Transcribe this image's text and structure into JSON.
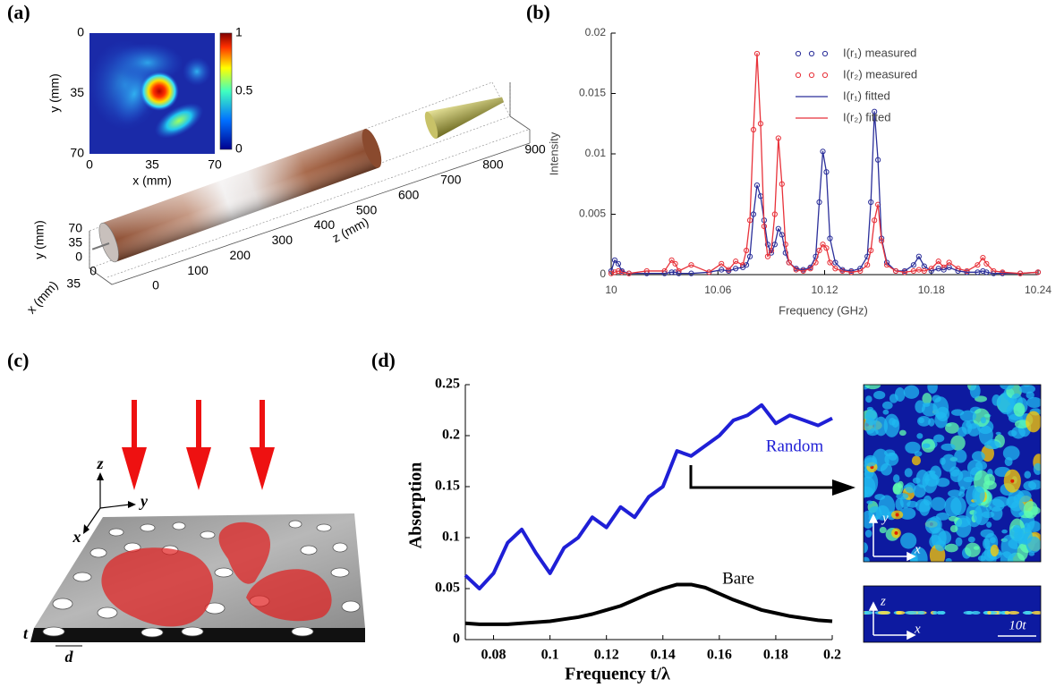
{
  "panel_labels": [
    "(a)",
    "(b)",
    "(c)",
    "(d)"
  ],
  "chart_data": [
    {
      "type": "line",
      "xlabel": "Frequency (GHz)",
      "ylabel": "Intensity",
      "legend": "upper right",
      "xlim": [
        10,
        10.24
      ],
      "xticks": [
        10,
        10.06,
        10.12,
        10.18,
        10.24
      ],
      "ylim": [
        0,
        0.02
      ],
      "yticks": [
        0,
        0.005,
        0.01,
        0.015,
        0.02
      ],
      "x": [
        10,
        10.002,
        10.004,
        10.006,
        10.01,
        10.02,
        10.03,
        10.034,
        10.036,
        10.038,
        10.045,
        10.055,
        10.062,
        10.066,
        10.07,
        10.074,
        10.076,
        10.078,
        10.08,
        10.082,
        10.084,
        10.086,
        10.088,
        10.09,
        10.092,
        10.094,
        10.096,
        10.098,
        10.1,
        10.104,
        10.108,
        10.112,
        10.115,
        10.117,
        10.119,
        10.121,
        10.123,
        10.126,
        10.13,
        10.135,
        10.14,
        10.144,
        10.146,
        10.148,
        10.15,
        10.152,
        10.155,
        10.16,
        10.165,
        10.17,
        10.173,
        10.176,
        10.18,
        10.184,
        10.187,
        10.19,
        10.195,
        10.2,
        10.206,
        10.209,
        10.211,
        10.215,
        10.22,
        10.23,
        10.24
      ],
      "series": [
        {
          "name": "I(r₁) measured",
          "style": "markers",
          "color": "#2b2f9a",
          "values": [
            0.0003,
            0.0012,
            0.0009,
            0.0003,
            0.0001,
            0.0001,
            0.0001,
            0.0002,
            0.0002,
            0.0001,
            0.0001,
            0.0002,
            0.0004,
            0.0003,
            0.0005,
            0.0006,
            0.0008,
            0.0015,
            0.005,
            0.0074,
            0.0065,
            0.0045,
            0.0025,
            0.0018,
            0.0025,
            0.0038,
            0.0033,
            0.0018,
            0.001,
            0.0005,
            0.0004,
            0.0006,
            0.0015,
            0.006,
            0.0102,
            0.0085,
            0.003,
            0.001,
            0.0004,
            0.0003,
            0.0005,
            0.0015,
            0.006,
            0.0135,
            0.0095,
            0.003,
            0.001,
            0.0003,
            0.0003,
            0.0008,
            0.0015,
            0.0007,
            0.0003,
            0.0005,
            0.0004,
            0.0006,
            0.0003,
            0.0002,
            0.0002,
            0.0003,
            0.0002,
            0.0001,
            0.0001,
            0.0001,
            0.0002
          ]
        },
        {
          "name": "I(r₂) measured",
          "style": "markers",
          "color": "#e8323a",
          "values": [
            0.0001,
            0.0002,
            0.0003,
            0.0002,
            0.0001,
            0.0003,
            0.0003,
            0.0012,
            0.0009,
            0.0003,
            0.0008,
            0.0002,
            0.0009,
            0.0004,
            0.0011,
            0.0008,
            0.002,
            0.0045,
            0.012,
            0.0183,
            0.0125,
            0.004,
            0.0015,
            0.002,
            0.005,
            0.0113,
            0.0075,
            0.0025,
            0.001,
            0.0004,
            0.0003,
            0.0005,
            0.001,
            0.002,
            0.0025,
            0.0022,
            0.001,
            0.0005,
            0.0003,
            0.0002,
            0.0003,
            0.0008,
            0.002,
            0.0045,
            0.0058,
            0.0028,
            0.0008,
            0.0003,
            0.0002,
            0.0003,
            0.0004,
            0.0003,
            0.0005,
            0.0011,
            0.0006,
            0.001,
            0.0005,
            0.0003,
            0.0008,
            0.0014,
            0.0009,
            0.0003,
            0.0002,
            0.0001,
            0.0002
          ]
        },
        {
          "name": "I(r₁) fitted",
          "style": "line",
          "color": "#2b2f9a",
          "values": [
            0.0003,
            0.0012,
            0.0009,
            0.0003,
            0.0001,
            0.0001,
            0.0001,
            0.0002,
            0.0002,
            0.0001,
            0.0001,
            0.0002,
            0.0004,
            0.0003,
            0.0005,
            0.0006,
            0.0008,
            0.0015,
            0.005,
            0.0074,
            0.0065,
            0.0045,
            0.0025,
            0.0018,
            0.0025,
            0.0038,
            0.0033,
            0.0018,
            0.001,
            0.0005,
            0.0004,
            0.0006,
            0.0015,
            0.006,
            0.0102,
            0.0085,
            0.003,
            0.001,
            0.0004,
            0.0003,
            0.0005,
            0.0015,
            0.006,
            0.0135,
            0.0095,
            0.003,
            0.001,
            0.0003,
            0.0003,
            0.0008,
            0.0015,
            0.0007,
            0.0003,
            0.0005,
            0.0004,
            0.0006,
            0.0003,
            0.0002,
            0.0002,
            0.0003,
            0.0002,
            0.0001,
            0.0001,
            0.0001,
            0.0002
          ]
        },
        {
          "name": "I(r₂) fitted",
          "style": "line",
          "color": "#e8323a",
          "values": [
            0.0001,
            0.0002,
            0.0003,
            0.0002,
            0.0001,
            0.0003,
            0.0003,
            0.0012,
            0.0009,
            0.0003,
            0.0008,
            0.0002,
            0.0009,
            0.0004,
            0.0011,
            0.0008,
            0.002,
            0.0045,
            0.012,
            0.0183,
            0.0125,
            0.004,
            0.0015,
            0.002,
            0.005,
            0.0113,
            0.0075,
            0.0025,
            0.001,
            0.0004,
            0.0003,
            0.0005,
            0.001,
            0.002,
            0.0025,
            0.0022,
            0.001,
            0.0005,
            0.0003,
            0.0002,
            0.0003,
            0.0008,
            0.002,
            0.0045,
            0.0058,
            0.0028,
            0.0008,
            0.0003,
            0.0002,
            0.0003,
            0.0004,
            0.0003,
            0.0005,
            0.0011,
            0.0006,
            0.001,
            0.0005,
            0.0003,
            0.0008,
            0.0014,
            0.0009,
            0.0003,
            0.0002,
            0.0001,
            0.0002
          ]
        }
      ]
    },
    {
      "type": "line",
      "xlabel": "Frequency t/λ",
      "ylabel": "Absorption",
      "legend": "inline",
      "xlim": [
        0.07,
        0.2
      ],
      "xticks": [
        0.08,
        0.1,
        0.12,
        0.14,
        0.16,
        0.18,
        0.2
      ],
      "ylim": [
        0,
        0.25
      ],
      "yticks": [
        0,
        0.05,
        0.1,
        0.15,
        0.2,
        0.25
      ],
      "x": [
        0.07,
        0.075,
        0.08,
        0.085,
        0.09,
        0.095,
        0.1,
        0.105,
        0.11,
        0.115,
        0.12,
        0.125,
        0.13,
        0.135,
        0.14,
        0.145,
        0.15,
        0.155,
        0.16,
        0.165,
        0.17,
        0.175,
        0.18,
        0.185,
        0.19,
        0.195,
        0.2
      ],
      "series": [
        {
          "name": "Random",
          "style": "line",
          "color": "#1f1fd6",
          "values": [
            0.063,
            0.05,
            0.065,
            0.095,
            0.108,
            0.085,
            0.065,
            0.09,
            0.1,
            0.12,
            0.11,
            0.13,
            0.12,
            0.14,
            0.15,
            0.185,
            0.18,
            0.19,
            0.2,
            0.215,
            0.22,
            0.23,
            0.212,
            0.22,
            0.215,
            0.21,
            0.217
          ]
        },
        {
          "name": "Bare",
          "style": "line",
          "color": "#000000",
          "values": [
            0.016,
            0.015,
            0.015,
            0.015,
            0.016,
            0.017,
            0.018,
            0.02,
            0.022,
            0.025,
            0.029,
            0.033,
            0.039,
            0.045,
            0.05,
            0.054,
            0.054,
            0.051,
            0.045,
            0.039,
            0.034,
            0.029,
            0.026,
            0.023,
            0.021,
            0.019,
            0.018
          ]
        }
      ]
    }
  ],
  "panel_a": {
    "inset": {
      "xlabel": "x (mm)",
      "ylabel": "y (mm)",
      "xlim": [
        0,
        70
      ],
      "ylim": [
        0,
        70
      ],
      "xticks": [
        0,
        35,
        70
      ],
      "yticks": [
        0,
        35,
        70
      ]
    },
    "colorbar": {
      "lim": [
        0,
        1
      ],
      "ticks": [
        0,
        0.5,
        1
      ]
    },
    "tube": {
      "zlabel": "z (mm)",
      "zlim": [
        0,
        900
      ],
      "zticks": [
        0,
        100,
        200,
        300,
        400,
        500,
        600,
        700,
        800,
        900
      ],
      "ylabel": "y (mm)",
      "ylim": [
        0,
        70
      ],
      "yticks": [
        0,
        35,
        70
      ],
      "xlabel": "x (mm)",
      "xlim": [
        0,
        35
      ],
      "xticks": [
        0,
        35
      ]
    }
  },
  "panel_c": {
    "z": "z",
    "y": "y",
    "x": "x",
    "t": "t",
    "d": "d"
  },
  "panel_d_maps": {
    "top_y": "y",
    "top_x": "x",
    "bottom_z": "z",
    "bottom_x": "x",
    "scale": "10t"
  }
}
